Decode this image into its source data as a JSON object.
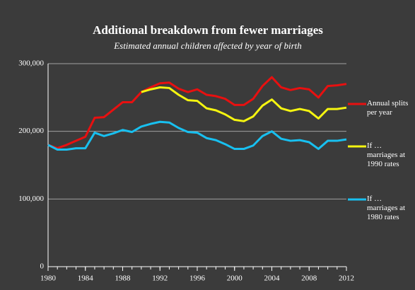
{
  "chart_data": {
    "type": "line",
    "title": "Additional breakdown from fewer marriages",
    "subtitle": "Estimated annual children affected by year of birth",
    "x": [
      1980,
      1981,
      1982,
      1983,
      1984,
      1985,
      1986,
      1987,
      1988,
      1989,
      1990,
      1991,
      1992,
      1993,
      1994,
      1995,
      1996,
      1997,
      1998,
      1999,
      2000,
      2001,
      2002,
      2003,
      2004,
      2005,
      2006,
      2007,
      2008,
      2009,
      2010,
      2011,
      2012
    ],
    "series": [
      {
        "name": "Annual splits per year",
        "color": "#e81010",
        "values": [
          180000,
          175000,
          180000,
          186000,
          192000,
          220000,
          221000,
          232000,
          243000,
          243000,
          258000,
          265000,
          271000,
          272000,
          263000,
          258000,
          262000,
          254000,
          252000,
          248000,
          239000,
          239000,
          248000,
          267000,
          280000,
          265000,
          261000,
          264000,
          262000,
          250000,
          267000,
          268000,
          270000
        ]
      },
      {
        "name": "If … marriages at 1990 rates",
        "color": "#f5f510",
        "values": [
          null,
          null,
          null,
          null,
          null,
          null,
          null,
          null,
          null,
          null,
          258000,
          262000,
          265000,
          264000,
          254000,
          246000,
          245000,
          234000,
          231000,
          225000,
          217000,
          215000,
          222000,
          238000,
          247000,
          234000,
          230000,
          233000,
          230000,
          219000,
          233000,
          233000,
          235000
        ]
      },
      {
        "name": "If … marriages at 1980 rates",
        "color": "#18c0f0",
        "values": [
          180000,
          173000,
          173000,
          175000,
          175000,
          198000,
          193000,
          197000,
          202000,
          199000,
          207000,
          211000,
          214000,
          213000,
          205000,
          199000,
          198000,
          190000,
          187000,
          181000,
          174000,
          174000,
          179000,
          193000,
          200000,
          189000,
          186000,
          187000,
          184000,
          174000,
          186000,
          186000,
          188000
        ]
      }
    ],
    "xlim": [
      1980,
      2012
    ],
    "xticks": [
      1980,
      1984,
      1988,
      1992,
      1996,
      2000,
      2004,
      2008,
      2012
    ],
    "ylim": [
      0,
      300000
    ],
    "yticks": [
      0,
      {
        "value": 100000,
        "label": "100,000"
      },
      {
        "value": 200000,
        "label": "200,000"
      },
      {
        "value": 300000,
        "label": "300,000"
      }
    ],
    "grid": true
  }
}
